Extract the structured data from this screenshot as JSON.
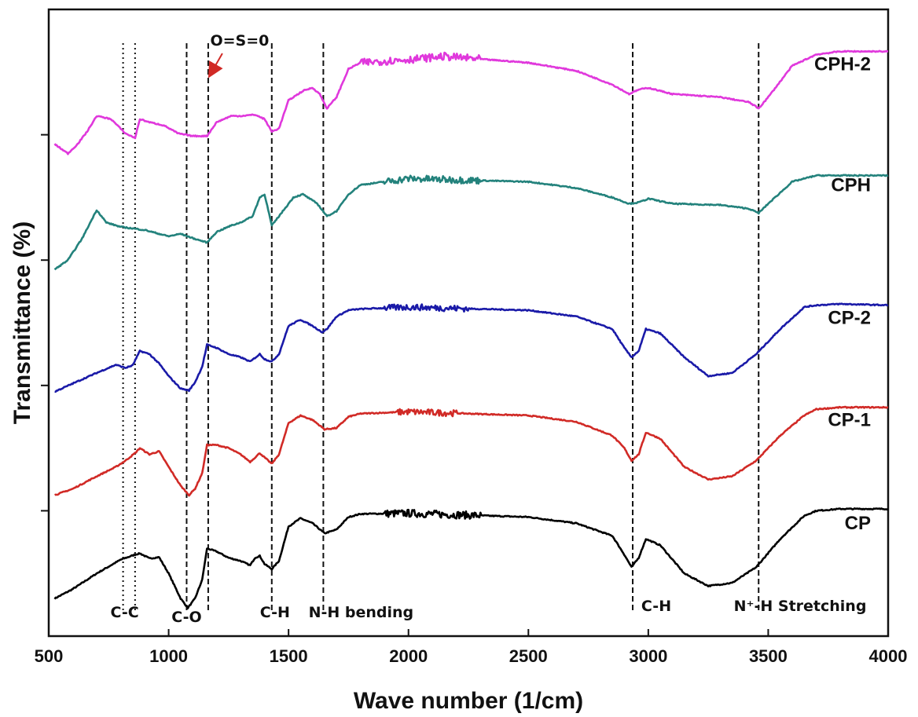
{
  "chart_data": {
    "type": "line",
    "title": "",
    "xlabel": "Wave number (1/cm)",
    "ylabel": "Transmittance (%)",
    "xlim": [
      500,
      4000
    ],
    "ylim": [
      0,
      100
    ],
    "x_ticks": [
      500,
      1000,
      1500,
      2000,
      2500,
      3000,
      3500,
      4000
    ],
    "y_ticks": [
      20,
      40,
      60,
      80
    ],
    "y_tick_labels_shown": false,
    "grid": false,
    "legend": "series labels at right end of each curve",
    "series": [
      {
        "name": "CP",
        "color": "#000000",
        "noise": [
          [
            1900,
            2300,
            1.2
          ]
        ],
        "points": [
          [
            525,
            6
          ],
          [
            600,
            7.5
          ],
          [
            700,
            10
          ],
          [
            800,
            12.2
          ],
          [
            860,
            13
          ],
          [
            880,
            13.2
          ],
          [
            920,
            12.4
          ],
          [
            960,
            12.6
          ],
          [
            1000,
            10
          ],
          [
            1050,
            6
          ],
          [
            1080,
            4.5
          ],
          [
            1110,
            6
          ],
          [
            1140,
            9
          ],
          [
            1160,
            14
          ],
          [
            1200,
            13.5
          ],
          [
            1250,
            12.5
          ],
          [
            1300,
            12
          ],
          [
            1340,
            11.3
          ],
          [
            1360,
            12.5
          ],
          [
            1380,
            12.8
          ],
          [
            1400,
            11.5
          ],
          [
            1430,
            10.7
          ],
          [
            1460,
            12
          ],
          [
            1500,
            17.5
          ],
          [
            1550,
            18.8
          ],
          [
            1600,
            18
          ],
          [
            1650,
            16.4
          ],
          [
            1700,
            17
          ],
          [
            1750,
            19
          ],
          [
            1800,
            19.5
          ],
          [
            2000,
            19.6
          ],
          [
            2500,
            19
          ],
          [
            2700,
            18
          ],
          [
            2850,
            16
          ],
          [
            2900,
            13
          ],
          [
            2930,
            11
          ],
          [
            2960,
            12.5
          ],
          [
            2990,
            15.5
          ],
          [
            3050,
            14.5
          ],
          [
            3150,
            10
          ],
          [
            3250,
            8
          ],
          [
            3350,
            8.5
          ],
          [
            3450,
            11
          ],
          [
            3550,
            15.5
          ],
          [
            3650,
            19.2
          ],
          [
            3700,
            20
          ],
          [
            3800,
            20.3
          ],
          [
            4000,
            20.3
          ]
        ]
      },
      {
        "name": "CP-1",
        "color": "#d12a26",
        "noise": [
          [
            1950,
            2200,
            1.0
          ]
        ],
        "points": [
          [
            525,
            22.5
          ],
          [
            600,
            23.5
          ],
          [
            700,
            25.5
          ],
          [
            780,
            27
          ],
          [
            820,
            28
          ],
          [
            860,
            29.2
          ],
          [
            880,
            30
          ],
          [
            920,
            29
          ],
          [
            960,
            29.5
          ],
          [
            1000,
            27
          ],
          [
            1050,
            24
          ],
          [
            1085,
            22.5
          ],
          [
            1110,
            23.5
          ],
          [
            1140,
            26
          ],
          [
            1160,
            30.5
          ],
          [
            1200,
            30.5
          ],
          [
            1250,
            30
          ],
          [
            1300,
            29
          ],
          [
            1340,
            27.8
          ],
          [
            1380,
            29.2
          ],
          [
            1400,
            28.5
          ],
          [
            1430,
            27.5
          ],
          [
            1460,
            29
          ],
          [
            1500,
            34
          ],
          [
            1550,
            35.2
          ],
          [
            1600,
            34.5
          ],
          [
            1650,
            33
          ],
          [
            1700,
            33.2
          ],
          [
            1750,
            35
          ],
          [
            1800,
            35.5
          ],
          [
            2000,
            35.8
          ],
          [
            2500,
            35.2
          ],
          [
            2700,
            34.2
          ],
          [
            2850,
            32
          ],
          [
            2900,
            30
          ],
          [
            2930,
            28
          ],
          [
            2960,
            29
          ],
          [
            2990,
            32.5
          ],
          [
            3050,
            31.5
          ],
          [
            3150,
            27
          ],
          [
            3250,
            25
          ],
          [
            3350,
            25.5
          ],
          [
            3450,
            28
          ],
          [
            3550,
            32
          ],
          [
            3650,
            35.2
          ],
          [
            3700,
            36.2
          ],
          [
            3800,
            36.5
          ],
          [
            4000,
            36.5
          ]
        ]
      },
      {
        "name": "CP-2",
        "color": "#1a1aa8",
        "noise": [
          [
            1900,
            2250,
            1.0
          ]
        ],
        "points": [
          [
            525,
            39
          ],
          [
            600,
            40.3
          ],
          [
            700,
            42
          ],
          [
            780,
            43.3
          ],
          [
            820,
            42.8
          ],
          [
            850,
            43.2
          ],
          [
            880,
            45.5
          ],
          [
            920,
            45
          ],
          [
            960,
            43.5
          ],
          [
            1000,
            41.5
          ],
          [
            1050,
            39.5
          ],
          [
            1085,
            39.2
          ],
          [
            1110,
            40.5
          ],
          [
            1140,
            43
          ],
          [
            1160,
            46.5
          ],
          [
            1200,
            46
          ],
          [
            1250,
            45
          ],
          [
            1300,
            44.5
          ],
          [
            1340,
            43.8
          ],
          [
            1380,
            45
          ],
          [
            1400,
            44.2
          ],
          [
            1430,
            43.8
          ],
          [
            1460,
            45
          ],
          [
            1500,
            49.5
          ],
          [
            1550,
            50.5
          ],
          [
            1600,
            49.5
          ],
          [
            1640,
            48.5
          ],
          [
            1660,
            49
          ],
          [
            1700,
            51
          ],
          [
            1750,
            52
          ],
          [
            1800,
            52.2
          ],
          [
            2000,
            52.5
          ],
          [
            2500,
            52
          ],
          [
            2700,
            51
          ],
          [
            2850,
            49
          ],
          [
            2900,
            46
          ],
          [
            2930,
            44.5
          ],
          [
            2960,
            45.5
          ],
          [
            2990,
            49
          ],
          [
            3050,
            48.3
          ],
          [
            3150,
            44.5
          ],
          [
            3250,
            41.5
          ],
          [
            3350,
            42
          ],
          [
            3450,
            45
          ],
          [
            3550,
            49
          ],
          [
            3650,
            52.5
          ],
          [
            3700,
            52.8
          ],
          [
            3800,
            53
          ],
          [
            4000,
            52.8
          ]
        ]
      },
      {
        "name": "CPH",
        "color": "#23827c",
        "noise": [
          [
            1900,
            2300,
            1.1
          ]
        ],
        "points": [
          [
            525,
            58.5
          ],
          [
            580,
            60
          ],
          [
            640,
            63.5
          ],
          [
            680,
            66.5
          ],
          [
            700,
            68
          ],
          [
            740,
            66
          ],
          [
            800,
            65.3
          ],
          [
            900,
            64.8
          ],
          [
            1000,
            63.8
          ],
          [
            1050,
            64.2
          ],
          [
            1100,
            63.5
          ],
          [
            1160,
            62.8
          ],
          [
            1200,
            64.5
          ],
          [
            1260,
            65.5
          ],
          [
            1300,
            66
          ],
          [
            1350,
            67
          ],
          [
            1380,
            70
          ],
          [
            1400,
            70.5
          ],
          [
            1430,
            65.5
          ],
          [
            1460,
            67
          ],
          [
            1520,
            70
          ],
          [
            1560,
            70.5
          ],
          [
            1620,
            69
          ],
          [
            1660,
            67
          ],
          [
            1700,
            67.8
          ],
          [
            1750,
            70.5
          ],
          [
            1800,
            72
          ],
          [
            2000,
            73
          ],
          [
            2500,
            72.5
          ],
          [
            2700,
            71.5
          ],
          [
            2850,
            70
          ],
          [
            2920,
            69
          ],
          [
            2960,
            69.2
          ],
          [
            3000,
            69.8
          ],
          [
            3100,
            69
          ],
          [
            3300,
            68.8
          ],
          [
            3420,
            68.2
          ],
          [
            3460,
            67.5
          ],
          [
            3500,
            69
          ],
          [
            3600,
            72.5
          ],
          [
            3700,
            73.5
          ],
          [
            3800,
            73.5
          ],
          [
            4000,
            73.5
          ]
        ]
      },
      {
        "name": "CPH-2",
        "color": "#e038dc",
        "noise": [
          [
            1800,
            2300,
            1.2
          ]
        ],
        "points": [
          [
            525,
            78.5
          ],
          [
            580,
            77
          ],
          [
            620,
            78.5
          ],
          [
            660,
            80.5
          ],
          [
            700,
            83
          ],
          [
            760,
            82.5
          ],
          [
            820,
            80.2
          ],
          [
            860,
            79.5
          ],
          [
            880,
            82.5
          ],
          [
            920,
            82
          ],
          [
            980,
            81.5
          ],
          [
            1040,
            80.2
          ],
          [
            1100,
            79.8
          ],
          [
            1160,
            79.8
          ],
          [
            1200,
            82
          ],
          [
            1260,
            83
          ],
          [
            1300,
            83
          ],
          [
            1360,
            83.2
          ],
          [
            1400,
            82.5
          ],
          [
            1430,
            80.5
          ],
          [
            1460,
            81
          ],
          [
            1500,
            85.5
          ],
          [
            1560,
            87
          ],
          [
            1600,
            87.5
          ],
          [
            1630,
            86.5
          ],
          [
            1660,
            84.2
          ],
          [
            1700,
            86
          ],
          [
            1750,
            90.5
          ],
          [
            1800,
            91.5
          ],
          [
            2000,
            92
          ],
          [
            2150,
            92.5
          ],
          [
            2500,
            91.5
          ],
          [
            2700,
            90.2
          ],
          [
            2850,
            88
          ],
          [
            2920,
            86.5
          ],
          [
            2960,
            87.2
          ],
          [
            3000,
            87.5
          ],
          [
            3100,
            86.5
          ],
          [
            3300,
            86
          ],
          [
            3420,
            85.2
          ],
          [
            3460,
            84.2
          ],
          [
            3500,
            86
          ],
          [
            3600,
            91
          ],
          [
            3700,
            92.8
          ],
          [
            3800,
            93.3
          ],
          [
            4000,
            93.3
          ]
        ]
      }
    ],
    "annotations": [
      {
        "label": "C-C",
        "x": 810,
        "line_style": "dotted"
      },
      {
        "label": "",
        "x": 860,
        "line_style": "dotted"
      },
      {
        "label": "C-O",
        "x": 1075,
        "line_style": "dashed"
      },
      {
        "label": "O=S=0",
        "x": 1165,
        "line_style": "dashed",
        "arrow": true
      },
      {
        "label": "C-H",
        "x": 1430,
        "line_style": "dashed"
      },
      {
        "label": "N-H bending",
        "x": 1645,
        "line_style": "dashed"
      },
      {
        "label": "C-H",
        "x": 2935,
        "line_style": "dashed"
      },
      {
        "label": "N⁺-H Stretching",
        "x": 3460,
        "line_style": "dashed"
      }
    ]
  }
}
